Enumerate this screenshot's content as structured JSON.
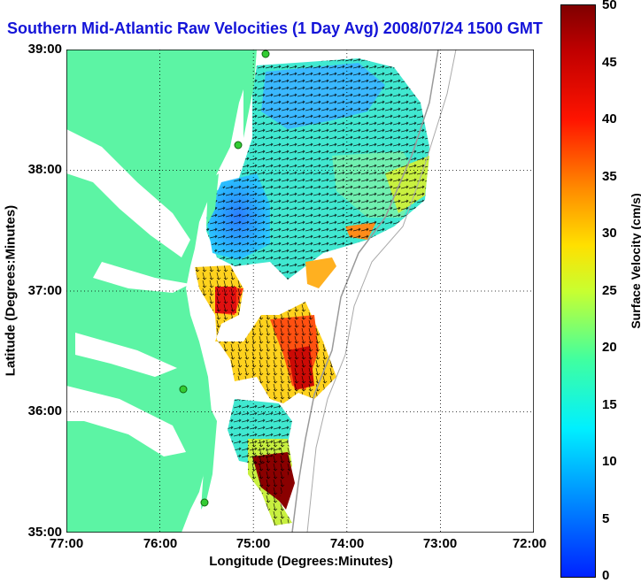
{
  "title": "Southern Mid-Atlantic Raw Velocities (1 Day Avg) 2008/07/24 1500 GMT",
  "axes": {
    "xlabel": "Longitude (Degrees:Minutes)",
    "ylabel": "Latitude (Degrees:Minutes)",
    "xticks": [
      "77:00",
      "76:00",
      "75:00",
      "74:00",
      "73:00",
      "72:00"
    ],
    "yticks": [
      "39:00",
      "38:00",
      "37:00",
      "36:00",
      "35:00"
    ],
    "xlim": [
      -77,
      -72
    ],
    "ylim": [
      35,
      39
    ],
    "grid": true
  },
  "colorbar": {
    "label": "Surface Velocity (cm/s)",
    "ticks": [
      "50",
      "45",
      "40",
      "35",
      "30",
      "25",
      "20",
      "15",
      "10",
      "5",
      "0"
    ],
    "range": [
      0,
      50
    ],
    "colors": [
      "#0022ff",
      "#00f0ff",
      "#40ffa0",
      "#ffe000",
      "#ff1400",
      "#800000"
    ]
  },
  "colors": {
    "land": "#5cf4a4",
    "title": "#1414d8",
    "station": "#33cc33"
  }
}
